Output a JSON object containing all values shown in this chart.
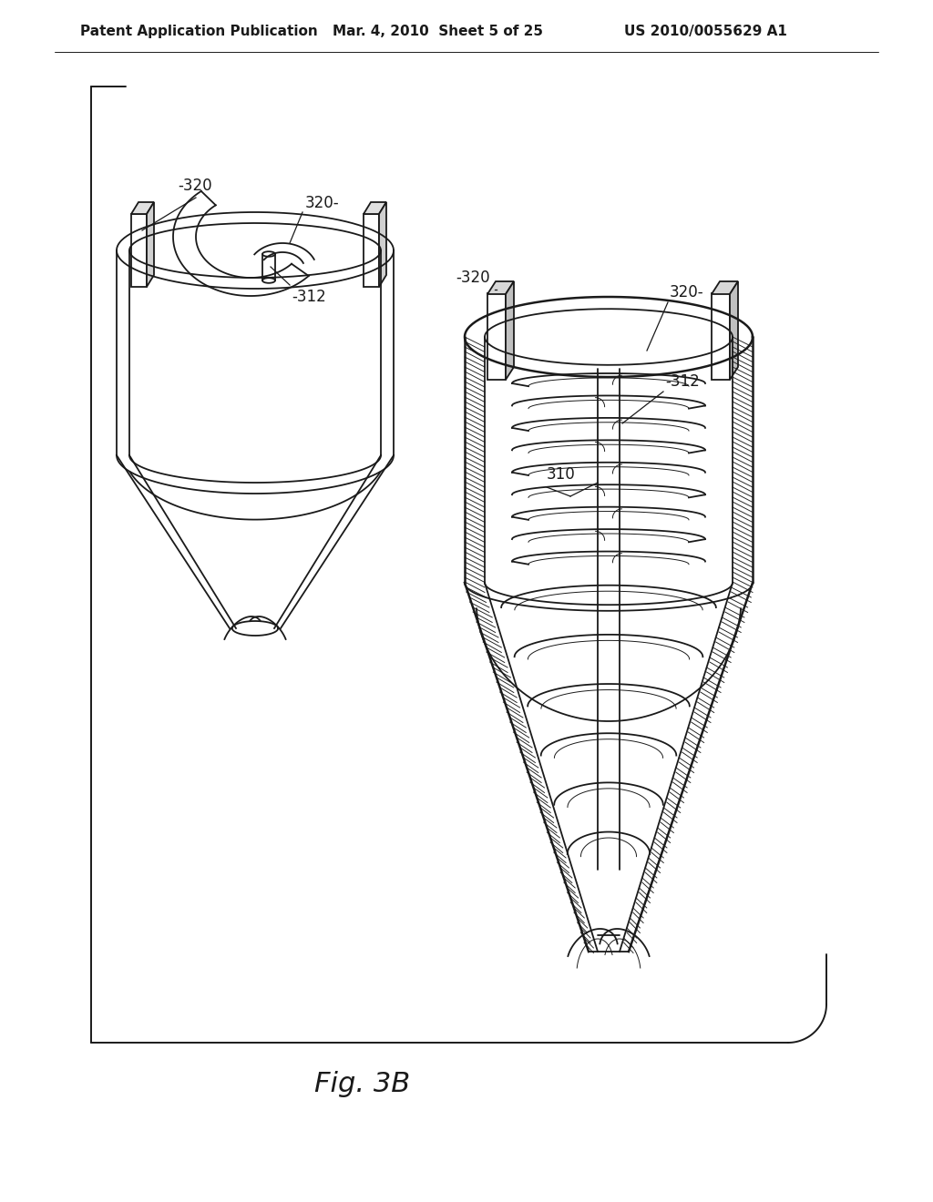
{
  "title": "Fig. 3B",
  "header_left": "Patent Application Publication",
  "header_mid": "Mar. 4, 2010  Sheet 5 of 25",
  "header_right": "US 2010/0055629 A1",
  "bg_color": "#ffffff",
  "line_color": "#1a1a1a",
  "title_fontsize": 22,
  "header_fontsize": 11,
  "lw_main": 1.3,
  "lw_thick": 1.8,
  "lw_thin": 0.7
}
